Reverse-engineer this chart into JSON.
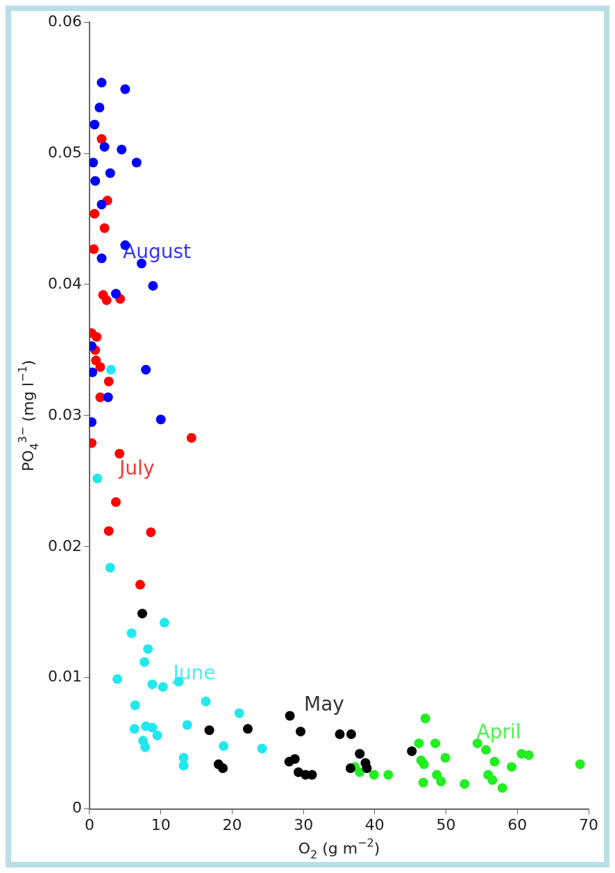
{
  "chart_data": {
    "type": "scatter",
    "xlabel": "O$_{2}$ (g m$^{−2}$)",
    "ylabel": "PO$_{4}$$^{3−}$ (mg l$^{−1}$)",
    "xlim": [
      0,
      70
    ],
    "xticks": [
      0,
      10,
      20,
      30,
      40,
      50,
      60,
      70
    ],
    "ylim": [
      0,
      0.06
    ],
    "yticks": [
      0,
      0.01,
      0.02,
      0.03,
      0.04,
      0.05,
      0.06
    ],
    "grid": false,
    "legend": false,
    "marker": "circle",
    "series": [
      {
        "color": "#0000ff",
        "x": [
          1.7,
          5.0,
          1.4,
          0.7,
          2.1,
          4.5,
          0.5,
          6.6,
          2.9,
          0.8,
          1.7,
          5.0,
          1.7,
          7.3,
          8.9,
          3.7,
          0.3,
          0.4,
          7.9,
          2.6,
          0.3,
          10.0
        ],
        "values": [
          0.0554,
          0.0549,
          0.0535,
          0.0522,
          0.0505,
          0.0503,
          0.0493,
          0.0493,
          0.0485,
          0.0479,
          0.0461,
          0.043,
          0.042,
          0.0416,
          0.0399,
          0.0393,
          0.0353,
          0.0333,
          0.0335,
          0.0314,
          0.0295,
          0.0297
        ]
      },
      {
        "color": "#ff0000",
        "x": [
          1.7,
          2.5,
          0.7,
          2.1,
          0.6,
          1.9,
          2.4,
          4.3,
          0.3,
          1.0,
          0.8,
          0.9,
          1.5,
          2.7,
          1.5,
          0.3,
          14.3,
          4.2,
          3.7,
          2.7,
          8.6,
          7.1
        ],
        "values": [
          0.0511,
          0.0464,
          0.0454,
          0.0443,
          0.0427,
          0.0392,
          0.0388,
          0.0389,
          0.0363,
          0.036,
          0.035,
          0.0342,
          0.0337,
          0.0326,
          0.0314,
          0.0279,
          0.0283,
          0.0271,
          0.0234,
          0.0212,
          0.0211,
          0.0171
        ]
      },
      {
        "color": "#22e8ee",
        "x": [
          3.0,
          1.1,
          2.9,
          10.5,
          5.9,
          8.2,
          7.7,
          3.9,
          8.8,
          10.3,
          12.5,
          16.3,
          6.4,
          21.0,
          13.7,
          6.3,
          7.9,
          8.8,
          9.5,
          7.5,
          7.8,
          18.8,
          24.2,
          13.2,
          13.2
        ],
        "values": [
          0.0335,
          0.0252,
          0.0184,
          0.0142,
          0.0134,
          0.0122,
          0.0112,
          0.0099,
          0.0095,
          0.0093,
          0.0097,
          0.0082,
          0.0079,
          0.0073,
          0.0064,
          0.0061,
          0.0063,
          0.0062,
          0.0056,
          0.0052,
          0.0047,
          0.0048,
          0.0046,
          0.0039,
          0.0033
        ]
      },
      {
        "color": "#000000",
        "x": [
          7.4,
          16.8,
          22.2,
          28.1,
          29.6,
          18.1,
          18.7,
          28.0,
          28.8,
          29.3,
          30.3,
          31.2,
          35.1,
          36.7,
          37.9,
          38.7,
          38.9,
          36.6,
          45.2
        ],
        "values": [
          0.0149,
          0.006,
          0.0061,
          0.0071,
          0.0059,
          0.0034,
          0.0031,
          0.0036,
          0.0038,
          0.0028,
          0.0026,
          0.0026,
          0.0057,
          0.0057,
          0.0042,
          0.0035,
          0.0031,
          0.0031,
          0.0044
        ]
      },
      {
        "color": "#22ee22",
        "x": [
          47.1,
          46.2,
          48.5,
          49.9,
          46.5,
          46.9,
          46.8,
          48.7,
          49.3,
          52.6,
          54.4,
          55.6,
          56.8,
          55.9,
          56.5,
          57.9,
          59.2,
          60.6,
          61.6,
          68.8,
          37.9,
          39.9,
          41.9,
          37.2
        ],
        "values": [
          0.0069,
          0.005,
          0.005,
          0.0039,
          0.0037,
          0.0034,
          0.002,
          0.0026,
          0.0021,
          0.0019,
          0.005,
          0.0045,
          0.0036,
          0.0026,
          0.0022,
          0.0016,
          0.0032,
          0.0042,
          0.0041,
          0.0034,
          0.0028,
          0.0026,
          0.0026,
          0.0032
        ]
      }
    ],
    "annotations": [
      "August",
      "July",
      "June",
      "May",
      "April"
    ]
  }
}
